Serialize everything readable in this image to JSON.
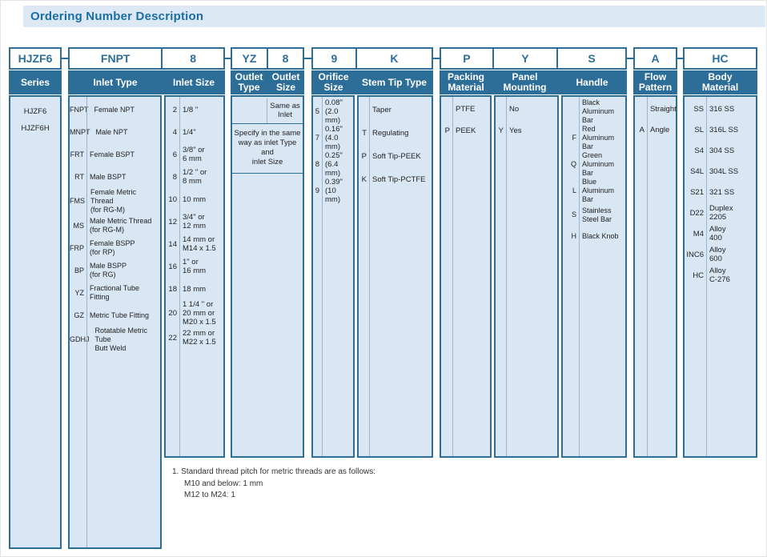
{
  "title": "Ordering Number Description",
  "colors": {
    "accent_blue": "#2d6e99",
    "panel_blue": "#d9e7f4",
    "title_bar_bg": "#dce9f5",
    "title_text": "#1b6da3",
    "divider": "#9db5ca"
  },
  "example_code": {
    "series": "HJZF6",
    "inlet_type": "FNPT",
    "inlet_size": "8",
    "outlet_type": "YZ",
    "outlet_size": "8",
    "orifice_size": "9",
    "stem_tip_type": "K",
    "packing_material": "P",
    "panel_mounting": "Y",
    "handle": "S",
    "flow_pattern": "A",
    "body_material": "HC"
  },
  "headers": {
    "series": "Series",
    "inlet_type": "Inlet Type",
    "inlet_size": "Inlet Size",
    "outlet_type": "Outlet\nType",
    "outlet_size": "Outlet\nSize",
    "orifice_size": "Orifice\nSize",
    "stem_tip_type": "Stem Tip Type",
    "packing_material": "Packing\nMaterial",
    "panel_mounting": "Panel\nMounting",
    "handle": "Handle",
    "flow_pattern": "Flow\nPattern",
    "body_material": "Body\nMaterial"
  },
  "columns": {
    "series": [
      "HJZF6",
      "HJZF6H"
    ],
    "inlet_type": [
      {
        "code": "FNPT",
        "desc": "Female NPT"
      },
      {
        "code": "MNPT",
        "desc": "Male NPT"
      },
      {
        "code": "FRT",
        "desc": "Female BSPT"
      },
      {
        "code": "RT",
        "desc": "Male BSPT"
      },
      {
        "code": "FMS",
        "desc": "Female Metric Thread\n(for RG-M)"
      },
      {
        "code": "MS",
        "desc": "Male Metric Thread\n(for RG-M)"
      },
      {
        "code": "FRP",
        "desc": "Female BSPP\n(for RP)"
      },
      {
        "code": "BP",
        "desc": "Male BSPP\n(for RG)"
      },
      {
        "code": "YZ",
        "desc": "Fractional Tube Fitting"
      },
      {
        "code": "GZ",
        "desc": "Metric Tube Fitting"
      },
      {
        "code": "GDHJ",
        "desc": "Rotatable Metric Tube\nButt Weld"
      }
    ],
    "inlet_size": [
      {
        "code": "2",
        "desc": "1/8 \""
      },
      {
        "code": "4",
        "desc": "1/4\""
      },
      {
        "code": "6",
        "desc": "3/8\" or\n6 mm"
      },
      {
        "code": "8",
        "desc": "1/2 \" or\n8 mm"
      },
      {
        "code": "10",
        "desc": "10 mm"
      },
      {
        "code": "12",
        "desc": "3/4\" or\n12 mm"
      },
      {
        "code": "14",
        "desc": "14 mm or\nM14 x 1.5"
      },
      {
        "code": "16",
        "desc": "1\" or\n16 mm"
      },
      {
        "code": "18",
        "desc": "18 mm"
      },
      {
        "code": "20",
        "desc": "1 1/4 \" or\n20 mm or\nM20 x 1.5"
      },
      {
        "code": "22",
        "desc": "22 mm or\nM22 x 1.5"
      }
    ],
    "outlet": {
      "same_as_inlet": "Same as\nInlet",
      "note": "Specify in the same\nway as inlet Type and\ninlet Size"
    },
    "orifice_size": [
      {
        "code": "5",
        "desc": "0.08\"\n(2.0 mm)"
      },
      {
        "code": "7",
        "desc": "0.16\"\n(4.0 mm)"
      },
      {
        "code": "8",
        "desc": "0.25\"\n(6.4 mm)"
      },
      {
        "code": "9",
        "desc": "0.39\"\n(10 mm)"
      }
    ],
    "stem_tip_type": [
      {
        "code": "",
        "desc": "Taper"
      },
      {
        "code": "T",
        "desc": "Regulating"
      },
      {
        "code": "P",
        "desc": "Soft Tip-PEEK"
      },
      {
        "code": "K",
        "desc": "Soft Tip-PCTFE"
      }
    ],
    "packing_material": [
      {
        "code": "",
        "desc": "PTFE"
      },
      {
        "code": "P",
        "desc": "PEEK"
      }
    ],
    "panel_mounting": [
      {
        "code": "",
        "desc": "No"
      },
      {
        "code": "Y",
        "desc": "Yes"
      }
    ],
    "handle": [
      {
        "code": "",
        "desc": "Black\nAluminum Bar"
      },
      {
        "code": "F",
        "desc": "Red\nAluminum Bar"
      },
      {
        "code": "Q",
        "desc": "Green\nAluminum Bar"
      },
      {
        "code": "L",
        "desc": "Blue\nAluminum Bar"
      },
      {
        "code": "S",
        "desc": "Stainless\nSteel Bar"
      },
      {
        "code": "H",
        "desc": "Black Knob"
      }
    ],
    "flow_pattern": [
      {
        "code": "",
        "desc": "Straight"
      },
      {
        "code": "A",
        "desc": "Angle"
      }
    ],
    "body_material": [
      {
        "code": "SS",
        "desc": "316 SS"
      },
      {
        "code": "SL",
        "desc": "316L SS"
      },
      {
        "code": "S4",
        "desc": "304 SS"
      },
      {
        "code": "S4L",
        "desc": "304L SS"
      },
      {
        "code": "S21",
        "desc": "321 SS"
      },
      {
        "code": "D22",
        "desc": "Duplex\n2205"
      },
      {
        "code": "M4",
        "desc": "Alloy\n400"
      },
      {
        "code": "INC6",
        "desc": "Alloy\n600"
      },
      {
        "code": "HC",
        "desc": "Alloy\nC-276"
      }
    ]
  },
  "footnote": {
    "line1": "1. Standard thread pitch for metric threads are as follows:",
    "line2": "M10 and below: 1 mm",
    "line3": "M12 to M24: 1"
  }
}
